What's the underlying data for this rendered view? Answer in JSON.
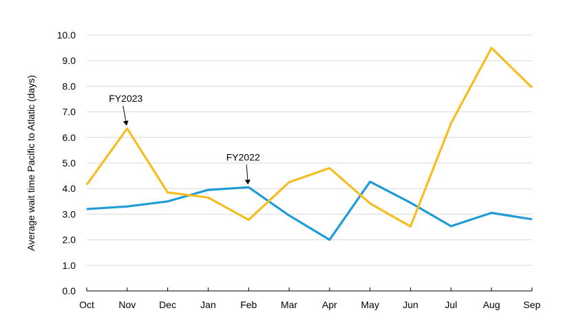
{
  "chart_data": {
    "type": "line",
    "categories": [
      "Oct",
      "Nov",
      "Dec",
      "Jan",
      "Feb",
      "Mar",
      "Apr",
      "May",
      "Jun",
      "Jul",
      "Aug",
      "Sep"
    ],
    "ylabel": "Average wait time Pacific to Atlatic (days)",
    "ylim": [
      0,
      10
    ],
    "y_ticks": [
      "0.0",
      "1.0",
      "2.0",
      "3.0",
      "4.0",
      "5.0",
      "6.0",
      "7.0",
      "8.0",
      "9.0",
      "10.0"
    ],
    "grid": true,
    "series": [
      {
        "name": "FY2022",
        "color": "#1f9bd7",
        "values": [
          3.2,
          3.3,
          3.5,
          3.95,
          4.05,
          2.95,
          2.0,
          4.27,
          3.45,
          2.53,
          3.05,
          2.8
        ]
      },
      {
        "name": "FY2023",
        "color": "#f5bd1f",
        "values": [
          4.15,
          6.35,
          3.85,
          3.65,
          2.78,
          4.25,
          4.8,
          3.42,
          2.52,
          6.55,
          9.5,
          7.95
        ]
      }
    ],
    "annotations": [
      {
        "text": "FY2023",
        "series": "FY2023",
        "category": "Nov"
      },
      {
        "text": "FY2022",
        "series": "FY2022",
        "category": "Feb"
      }
    ]
  }
}
